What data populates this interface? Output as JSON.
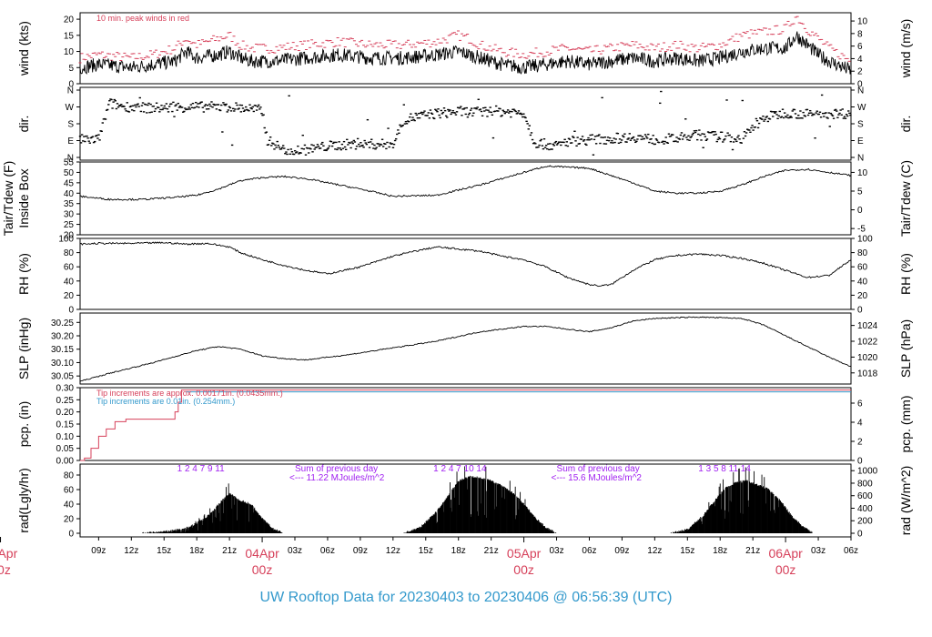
{
  "footer_title": "UW Rooftop Data for 20230403  to  20230406 @ 06:56:39  (UTC)",
  "colors": {
    "peak": "#d6405a",
    "trace": "#000000",
    "tip_fine": "#d6405a",
    "tip_coarse": "#3399cc",
    "note": "#a020f0",
    "footer": "#3399cc"
  },
  "x_axis": {
    "hour_ticks": [
      "09z",
      "12z",
      "15z",
      "18z",
      "21z",
      "03z",
      "06z",
      "09z",
      "12z",
      "15z",
      "18z",
      "21z",
      "03z",
      "06z",
      "09z",
      "12z",
      "15z",
      "18z",
      "21z",
      "03z",
      "06z"
    ],
    "day_labels": [
      {
        "date": "03Apr",
        "time": "00z",
        "x_hours": 0
      },
      {
        "date": "04Apr",
        "time": "00z",
        "x_hours": 24
      },
      {
        "date": "05Apr",
        "time": "00z",
        "x_hours": 48
      },
      {
        "date": "06Apr",
        "time": "00z",
        "x_hours": 72
      }
    ],
    "xlim_hours": [
      7.3,
      78.0
    ]
  },
  "chart_data": [
    {
      "type": "line",
      "panel": "wind",
      "ylabel_left": "wind (kts)",
      "ylabel_right": "wind (m/s)",
      "ylim": [
        0,
        22
      ],
      "yticks_left": [
        0,
        5,
        10,
        15,
        20
      ],
      "yticks_right": [
        0,
        2,
        4,
        6,
        8,
        10
      ],
      "annotation": "10 min. peak winds in red",
      "series": [
        {
          "role": "mean",
          "x_hours": [
            7.3,
            9,
            12,
            14,
            16,
            17,
            18,
            20,
            21,
            22,
            23,
            25,
            28,
            31,
            34,
            37,
            40,
            42,
            43,
            44,
            45,
            46,
            48,
            50,
            52,
            54,
            56,
            58,
            60,
            62,
            64,
            66,
            68,
            70,
            72,
            73,
            74,
            75,
            76,
            78
          ],
          "values": [
            5,
            6,
            5,
            6,
            7,
            10,
            8,
            9,
            10,
            8,
            7,
            7,
            8,
            9,
            8,
            8,
            9,
            10,
            9,
            8,
            7,
            6,
            5,
            6,
            7,
            6,
            7,
            8,
            7,
            8,
            7,
            8,
            10,
            11,
            11,
            15,
            12,
            9,
            7,
            4
          ]
        },
        {
          "role": "peak",
          "x_hours": [
            7.3,
            9,
            12,
            14,
            16,
            17,
            18,
            20,
            21,
            22,
            23,
            25,
            28,
            31,
            34,
            37,
            40,
            42,
            43,
            44,
            45,
            46,
            48,
            50,
            52,
            54,
            56,
            58,
            60,
            62,
            64,
            66,
            68,
            70,
            72,
            73,
            74,
            75,
            76,
            78
          ],
          "values": [
            8,
            9,
            8,
            9,
            11,
            14,
            12,
            14,
            15,
            12,
            11,
            11,
            12,
            13,
            12,
            12,
            13,
            15,
            14,
            12,
            11,
            10,
            9,
            10,
            11,
            10,
            11,
            12,
            11,
            12,
            11,
            12,
            15,
            16,
            17,
            21,
            17,
            14,
            11,
            7
          ]
        }
      ]
    },
    {
      "type": "scatter",
      "panel": "dir.",
      "ylabel_left": "dir.",
      "ylabel_right": "dir.",
      "yticks_left": [
        "N",
        "E",
        "S",
        "W",
        "N"
      ],
      "yticks_right": [
        "N",
        "E",
        "S",
        "W",
        "N"
      ],
      "ylim_deg": [
        0,
        360
      ],
      "series": [
        {
          "name": "",
          "x_hours": [
            7.3,
            9,
            10,
            11,
            13,
            15,
            17,
            19,
            21,
            23,
            24,
            24.5,
            25,
            26,
            28,
            30,
            32,
            34,
            36,
            37,
            38,
            40,
            42,
            44,
            45,
            46,
            48,
            49,
            50,
            51,
            52,
            54,
            56,
            58,
            60,
            62,
            64,
            66,
            68,
            70,
            72,
            74,
            76,
            78
          ],
          "values": [
            95,
            95,
            290,
            275,
            265,
            265,
            270,
            270,
            270,
            260,
            250,
            90,
            75,
            40,
            40,
            60,
            70,
            70,
            70,
            200,
            215,
            235,
            245,
            240,
            250,
            245,
            240,
            80,
            70,
            60,
            85,
            95,
            100,
            110,
            95,
            100,
            120,
            110,
            100,
            210,
            240,
            230,
            235,
            235
          ]
        }
      ]
    },
    {
      "type": "line",
      "panel": "Tair/Tdew",
      "ylabel_left": "Tair/Tdew (F)",
      "ylabel_left2": "Inside Box",
      "ylabel_right": "Tair/Tdew (C)",
      "ylim": [
        20,
        55
      ],
      "yticks_left": [
        20,
        25,
        30,
        35,
        40,
        45,
        50,
        55
      ],
      "yticks_right": [
        -5,
        0,
        5,
        10
      ],
      "series": [
        {
          "name": "",
          "x_hours": [
            7.3,
            10,
            13,
            16,
            18,
            20,
            22,
            24,
            26,
            28,
            30,
            33,
            36,
            40,
            44,
            46,
            48,
            50,
            54,
            58,
            60,
            62,
            64,
            66,
            68,
            70,
            72,
            74,
            76,
            78
          ],
          "values": [
            38.5,
            37,
            37,
            38,
            39,
            42,
            46,
            47.5,
            48,
            47,
            45,
            42,
            38.5,
            39,
            44,
            47,
            50,
            53,
            52,
            45,
            41,
            40,
            40,
            41,
            44,
            48,
            51,
            51.5,
            50,
            48.5
          ]
        }
      ]
    },
    {
      "type": "line",
      "panel": "RH",
      "ylabel_left": "RH (%)",
      "ylabel_right": "RH (%)",
      "ylim": [
        0,
        100
      ],
      "yticks_left": [
        0,
        20,
        40,
        60,
        80,
        100
      ],
      "yticks_right": [
        0,
        20,
        40,
        60,
        80,
        100
      ],
      "series": [
        {
          "name": "",
          "x_hours": [
            7.3,
            9,
            12,
            15,
            17,
            19,
            21,
            22,
            24,
            26,
            28,
            30,
            33,
            36,
            38,
            40,
            42,
            44,
            46,
            48,
            50,
            52,
            54,
            55,
            56,
            57,
            58,
            60,
            62,
            64,
            66,
            68,
            70,
            72,
            74,
            76,
            78
          ],
          "values": [
            92,
            93,
            93,
            94,
            92,
            93,
            88,
            80,
            70,
            62,
            55,
            50,
            60,
            75,
            82,
            88,
            85,
            82,
            75,
            70,
            60,
            45,
            35,
            33,
            35,
            45,
            55,
            70,
            76,
            78,
            76,
            72,
            65,
            55,
            45,
            48,
            70
          ]
        }
      ]
    },
    {
      "type": "line",
      "panel": "SLP",
      "ylabel_left": "SLP (inHg)",
      "ylabel_right": "SLP (hPa)",
      "ylim": [
        30.02,
        30.285
      ],
      "yticks_left": [
        30.05,
        30.1,
        30.15,
        30.2,
        30.25
      ],
      "yticks_right": [
        1018,
        1020,
        1022,
        1024
      ],
      "series": [
        {
          "name": "",
          "x_hours": [
            7.3,
            10,
            14,
            18,
            20,
            22,
            24,
            26,
            28,
            30,
            32,
            36,
            40,
            44,
            48,
            50,
            52,
            54,
            56,
            58,
            60,
            64,
            68,
            70,
            72,
            74,
            76,
            78
          ],
          "values": [
            30.03,
            30.06,
            30.1,
            30.145,
            30.16,
            30.15,
            30.125,
            30.115,
            30.11,
            30.12,
            30.13,
            30.155,
            30.18,
            30.215,
            30.235,
            30.235,
            30.225,
            30.215,
            30.23,
            30.255,
            30.265,
            30.27,
            30.265,
            30.24,
            30.2,
            30.16,
            30.12,
            30.085
          ]
        }
      ]
    },
    {
      "type": "line",
      "panel": "pcp.",
      "ylabel_left": "pcp. (in)",
      "ylabel_right": "pcp. (mm)",
      "ylim": [
        0,
        0.3
      ],
      "yticks_left": [
        0.0,
        0.05,
        0.1,
        0.15,
        0.2,
        0.25,
        0.3
      ],
      "yticks_right": [
        0,
        2,
        4,
        6
      ],
      "notes": [
        {
          "text": "Tip increments are approx. 0.00171in. (0.0435mm.)",
          "color_key": "tip_fine"
        },
        {
          "text": "Tip increments are 0.01in. (0.254mm.)",
          "color_key": "tip_coarse"
        }
      ],
      "series": [
        {
          "name": "",
          "x_hours": [
            7.3,
            7.7,
            8.3,
            9.0,
            9.7,
            10.5,
            11.5,
            15.5,
            16.0,
            16.3,
            16.6,
            17.0,
            78.0
          ],
          "values": [
            0,
            0.01,
            0.05,
            0.1,
            0.13,
            0.16,
            0.17,
            0.17,
            0.2,
            0.24,
            0.29,
            0.29,
            0.29
          ]
        }
      ]
    },
    {
      "type": "area",
      "panel": "rad",
      "ylabel_left": "rad(Lgly/hr)",
      "ylabel_right": "rad (W/m^2)",
      "ylim": [
        0,
        95
      ],
      "yticks_left": [
        0,
        20,
        40,
        60,
        80
      ],
      "yticks_right": [
        0,
        200,
        400,
        600,
        800,
        1000
      ],
      "notes": [
        {
          "line1": "Sum of previous day",
          "line2": "<--- 11.22 MJoules/m^2",
          "x_hours": 27
        },
        {
          "line1": "Sum of previous day",
          "line2": "<--- 15.6 MJoules/m^2",
          "x_hours": 51
        }
      ],
      "hour_markers": [
        {
          "labels": "1    2    4    7    9    11",
          "x_start": 16.2,
          "x_end": 26.2
        },
        {
          "labels": "1    2    4    7    10       14",
          "x_start": 39.7,
          "x_end": 48.5
        },
        {
          "labels": "1   3    5    8    11     14",
          "x_start": 64.0,
          "x_end": 72.5
        }
      ],
      "series": [
        {
          "name": "",
          "x_hours": [
            13,
            15,
            16.5,
            17.5,
            18.5,
            19.5,
            20,
            21,
            22,
            23,
            24,
            25,
            26,
            37,
            38.5,
            40,
            41,
            42,
            43,
            44,
            45,
            46,
            47,
            48,
            49,
            50,
            51,
            61.5,
            63,
            64.5,
            65.5,
            66.5,
            67.5,
            68.5,
            69.5,
            70.5,
            71.5,
            72.5,
            73.5,
            74.5
          ],
          "values": [
            0,
            2,
            5,
            10,
            18,
            30,
            40,
            55,
            45,
            40,
            20,
            6,
            0,
            0,
            8,
            30,
            50,
            72,
            78,
            76,
            72,
            65,
            55,
            40,
            22,
            8,
            0,
            0,
            5,
            25,
            45,
            62,
            70,
            72,
            66,
            60,
            45,
            25,
            10,
            0
          ]
        }
      ]
    }
  ]
}
